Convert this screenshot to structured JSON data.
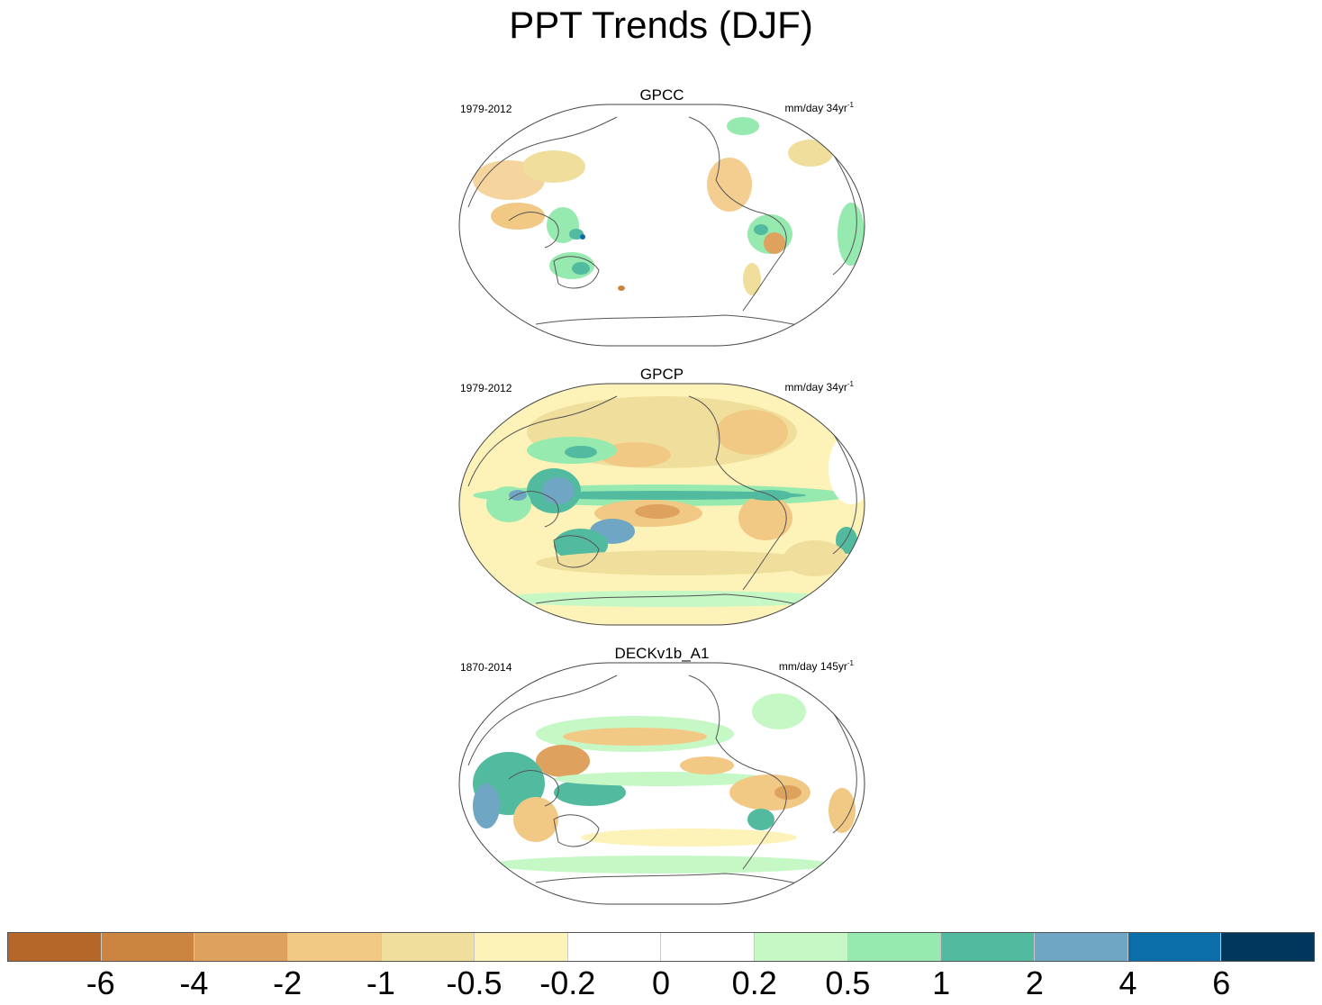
{
  "title": "PPT Trends (DJF)",
  "panels": [
    {
      "title": "GPCC",
      "period": "1979-2012",
      "units": "mm/day 34yr",
      "units_exp": "-1"
    },
    {
      "title": "GPCP",
      "period": "1979-2012",
      "units": "mm/day 34yr",
      "units_exp": "-1"
    },
    {
      "title": "DECKv1b_A1",
      "period": "1870-2014",
      "units": "mm/day 145yr",
      "units_exp": "-1"
    }
  ],
  "colorbar": {
    "colors": [
      "#b5672a",
      "#cc8540",
      "#dea25e",
      "#f2c984",
      "#f0df9c",
      "#fdf2b8",
      "#ffffff",
      "#ffffff",
      "#c6f8c6",
      "#96eab0",
      "#52bb9f",
      "#6ea6c4",
      "#0b6ea8",
      "#00375a"
    ],
    "labels": [
      "-6",
      "-4",
      "-2",
      "-1",
      "-0.5",
      "-0.2",
      "0",
      "0.2",
      "0.5",
      "1",
      "2",
      "4",
      "6"
    ]
  },
  "icons": {
    "map": "world-map-projection"
  }
}
